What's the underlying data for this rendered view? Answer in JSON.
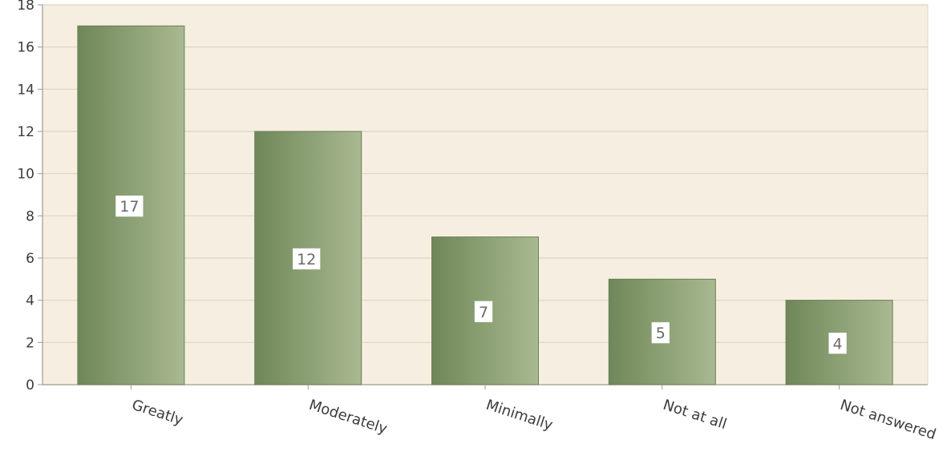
{
  "chart_data": {
    "type": "bar",
    "title": "",
    "xlabel": "",
    "ylabel": "",
    "categories": [
      "Greatly",
      "Moderately",
      "Minimally",
      "Not at all",
      "Not answered"
    ],
    "values": [
      17,
      12,
      7,
      5,
      4
    ],
    "data_labels": [
      "17",
      "12",
      "7",
      "5",
      "4"
    ],
    "ylim": [
      0,
      18
    ],
    "yticks": [
      0,
      2,
      4,
      6,
      8,
      10,
      12,
      14,
      16,
      18
    ],
    "grid": true,
    "legend": "none",
    "colors": {
      "plot_background": "#f6efe1",
      "grid_line": "#ddd4bf",
      "axis_line": "#a09a8a",
      "bar_dark": "#6f8758",
      "bar_light": "#a9b991",
      "bar_border": "#6b7d57",
      "label_box": "#ffffff",
      "text": "#3c3c3c"
    }
  }
}
